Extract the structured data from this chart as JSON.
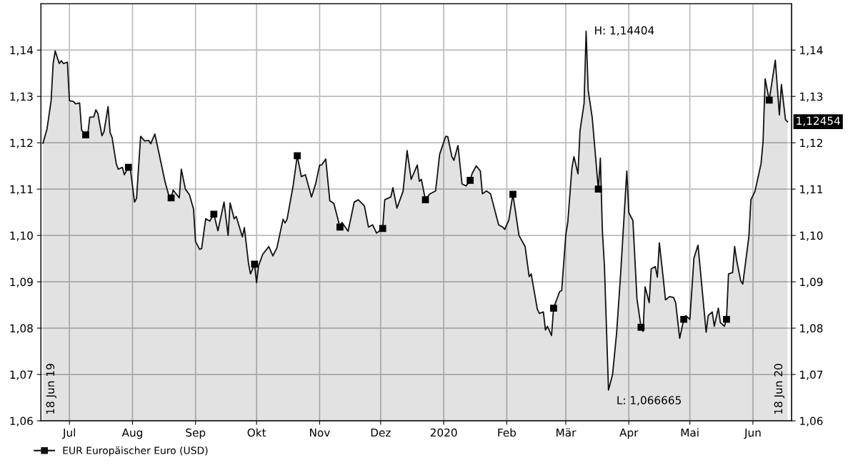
{
  "chart_data": {
    "type": "area",
    "x": [
      "2019-06-18",
      "2019-06-20",
      "2019-06-22",
      "2019-06-23",
      "2019-06-24",
      "2019-06-26",
      "2019-06-27",
      "2019-06-28",
      "2019-06-30",
      "2019-07-01",
      "2019-07-03",
      "2019-07-04",
      "2019-07-06",
      "2019-07-07",
      "2019-07-09",
      "2019-07-10",
      "2019-07-11",
      "2019-07-13",
      "2019-07-14",
      "2019-07-15",
      "2019-07-17",
      "2019-07-18",
      "2019-07-20",
      "2019-07-21",
      "2019-07-22",
      "2019-07-24",
      "2019-07-25",
      "2019-07-27",
      "2019-07-28",
      "2019-07-30",
      "2019-07-31",
      "2019-08-02",
      "2019-08-03",
      "2019-08-05",
      "2019-08-07",
      "2019-08-09",
      "2019-08-10",
      "2019-08-12",
      "2019-08-14",
      "2019-08-17",
      "2019-08-19",
      "2019-08-20",
      "2019-08-21",
      "2019-08-24",
      "2019-08-25",
      "2019-08-27",
      "2019-08-29",
      "2019-08-31",
      "2019-09-01",
      "2019-09-03",
      "2019-09-04",
      "2019-09-06",
      "2019-09-08",
      "2019-09-10",
      "2019-09-12",
      "2019-09-15",
      "2019-09-17",
      "2019-09-18",
      "2019-09-20",
      "2019-09-21",
      "2019-09-24",
      "2019-09-25",
      "2019-09-27",
      "2019-09-28",
      "2019-09-30",
      "2019-10-01",
      "2019-10-02",
      "2019-10-04",
      "2019-10-07",
      "2019-10-09",
      "2019-10-11",
      "2019-10-14",
      "2019-10-15",
      "2019-10-16",
      "2019-10-19",
      "2019-10-21",
      "2019-10-23",
      "2019-10-25",
      "2019-10-28",
      "2019-10-30",
      "2019-11-01",
      "2019-11-02",
      "2019-11-04",
      "2019-11-06",
      "2019-11-08",
      "2019-11-11",
      "2019-11-12",
      "2019-11-15",
      "2019-11-18",
      "2019-11-20",
      "2019-11-23",
      "2019-11-25",
      "2019-11-27",
      "2019-11-29",
      "2019-12-02",
      "2019-12-03",
      "2019-12-06",
      "2019-12-07",
      "2019-12-09",
      "2019-12-12",
      "2019-12-14",
      "2019-12-16",
      "2019-12-19",
      "2019-12-20",
      "2019-12-21",
      "2019-12-23",
      "2019-12-25",
      "2019-12-28",
      "2019-12-30",
      "2020-01-02",
      "2020-01-03",
      "2020-01-05",
      "2020-01-06",
      "2020-01-08",
      "2020-01-10",
      "2020-01-12",
      "2020-01-14",
      "2020-01-15",
      "2020-01-17",
      "2020-01-19",
      "2020-01-20",
      "2020-01-22",
      "2020-01-24",
      "2020-01-28",
      "2020-01-30",
      "2020-01-31",
      "2020-02-02",
      "2020-02-04",
      "2020-02-07",
      "2020-02-10",
      "2020-02-12",
      "2020-02-13",
      "2020-02-16",
      "2020-02-17",
      "2020-02-19",
      "2020-02-20",
      "2020-02-21",
      "2020-02-23",
      "2020-02-24",
      "2020-02-27",
      "2020-02-28",
      "2020-03-01",
      "2020-03-02",
      "2020-03-04",
      "2020-03-05",
      "2020-03-07",
      "2020-03-08",
      "2020-03-10",
      "2020-03-11",
      "2020-03-12",
      "2020-03-14",
      "2020-03-17",
      "2020-03-18",
      "2020-03-19",
      "2020-03-20",
      "2020-03-22",
      "2020-03-24",
      "2020-03-26",
      "2020-03-28",
      "2020-03-31",
      "2020-04-01",
      "2020-04-03",
      "2020-04-05",
      "2020-04-07",
      "2020-04-08",
      "2020-04-09",
      "2020-04-11",
      "2020-04-12",
      "2020-04-14",
      "2020-04-15",
      "2020-04-16",
      "2020-04-18",
      "2020-04-19",
      "2020-04-21",
      "2020-04-23",
      "2020-04-24",
      "2020-04-26",
      "2020-04-28",
      "2020-04-29",
      "2020-05-01",
      "2020-05-03",
      "2020-05-05",
      "2020-05-09",
      "2020-05-10",
      "2020-05-12",
      "2020-05-13",
      "2020-05-15",
      "2020-05-16",
      "2020-05-18",
      "2020-05-19",
      "2020-05-20",
      "2020-05-22",
      "2020-05-23",
      "2020-05-24",
      "2020-05-26",
      "2020-05-27",
      "2020-05-30",
      "2020-05-31",
      "2020-06-02",
      "2020-06-05",
      "2020-06-06",
      "2020-06-07",
      "2020-06-09",
      "2020-06-12",
      "2020-06-14",
      "2020-06-15",
      "2020-06-17",
      "2020-06-18"
    ],
    "series": [
      {
        "name": "EUR Europäischer Euro (USD)",
        "color": "#111111",
        "values": [
          1.1199,
          1.123,
          1.1291,
          1.1371,
          1.1398,
          1.1371,
          1.1377,
          1.1371,
          1.1374,
          1.1291,
          1.1289,
          1.1284,
          1.1286,
          1.1227,
          1.1217,
          1.1217,
          1.1255,
          1.1256,
          1.1271,
          1.1263,
          1.1215,
          1.1224,
          1.1278,
          1.1222,
          1.1211,
          1.1155,
          1.1143,
          1.1147,
          1.1131,
          1.1147,
          1.1142,
          1.1072,
          1.108,
          1.1214,
          1.1204,
          1.1205,
          1.1198,
          1.1219,
          1.1178,
          1.1116,
          1.1084,
          1.1081,
          1.1098,
          1.1081,
          1.1143,
          1.11,
          1.1088,
          1.1057,
          1.0987,
          1.097,
          1.0972,
          1.1036,
          1.1031,
          1.1046,
          1.101,
          1.1072,
          1.1,
          1.107,
          1.1036,
          1.1041,
          1.0997,
          1.1017,
          1.0941,
          1.0917,
          1.0938,
          1.0898,
          1.0935,
          1.0959,
          1.0976,
          1.0956,
          1.0973,
          1.1035,
          1.1027,
          1.1035,
          1.1108,
          1.1172,
          1.1127,
          1.1131,
          1.1083,
          1.1111,
          1.1152,
          1.1152,
          1.1165,
          1.1075,
          1.1069,
          1.1018,
          1.1028,
          1.1009,
          1.1072,
          1.1077,
          1.1064,
          1.1018,
          1.1023,
          1.1005,
          1.1015,
          1.1077,
          1.1083,
          1.1103,
          1.1059,
          1.1095,
          1.1183,
          1.1121,
          1.1152,
          1.1117,
          1.1121,
          1.1077,
          1.1089,
          1.1096,
          1.1175,
          1.1214,
          1.1213,
          1.117,
          1.1162,
          1.1194,
          1.1111,
          1.1107,
          1.1119,
          1.1134,
          1.115,
          1.1139,
          1.109,
          1.1096,
          1.109,
          1.1023,
          1.1018,
          1.1013,
          1.1033,
          1.1089,
          1.1,
          1.0976,
          1.0911,
          1.0917,
          1.0841,
          1.0832,
          1.0835,
          1.0796,
          1.0804,
          1.0784,
          1.0843,
          1.0879,
          1.0881,
          1.1001,
          1.1029,
          1.1145,
          1.117,
          1.1133,
          1.1226,
          1.1285,
          1.14404,
          1.1314,
          1.1254,
          1.11,
          1.1167,
          1.1009,
          1.0934,
          1.066665,
          1.07,
          1.079,
          1.0919,
          1.1139,
          1.1049,
          1.1032,
          1.0863,
          1.0802,
          1.0793,
          1.0889,
          1.0855,
          1.0928,
          1.0933,
          1.091,
          1.0984,
          1.0904,
          1.0861,
          1.0868,
          1.0866,
          1.0855,
          1.0778,
          1.0819,
          1.0827,
          1.0819,
          1.0951,
          1.0979,
          1.0791,
          1.0827,
          1.0835,
          1.0804,
          1.0843,
          1.0812,
          1.0804,
          1.0819,
          1.0917,
          1.092,
          1.0976,
          1.0946,
          1.0902,
          1.0895,
          1.0997,
          1.1077,
          1.1095,
          1.1155,
          1.1204,
          1.1338,
          1.1292,
          1.1378,
          1.126,
          1.1326,
          1.125,
          1.12454
        ]
      },
      {
        "type": "scatter",
        "marker": "square",
        "color": "#000000",
        "x": [
          "2019-07-09",
          "2019-07-30",
          "2019-08-20",
          "2019-09-10",
          "2019-09-30",
          "2019-10-21",
          "2019-11-11",
          "2019-12-02",
          "2019-12-23",
          "2020-01-14",
          "2020-02-04",
          "2020-02-24",
          "2020-03-17",
          "2020-04-07",
          "2020-04-28",
          "2020-05-19",
          "2020-06-09"
        ],
        "values": [
          1.1217,
          1.1147,
          1.1081,
          1.1046,
          1.0938,
          1.1172,
          1.1018,
          1.1015,
          1.1077,
          1.1119,
          1.1089,
          1.0843,
          1.11,
          1.0802,
          1.0819,
          1.0819,
          1.1292
        ]
      }
    ],
    "xlim": [
      "2019-06-17",
      "2020-06-20"
    ],
    "xticks": [
      {
        "value": "2019-07-01",
        "label": "Jul"
      },
      {
        "value": "2019-08-01",
        "label": "Aug"
      },
      {
        "value": "2019-09-01",
        "label": "Sep"
      },
      {
        "value": "2019-10-01",
        "label": "Okt"
      },
      {
        "value": "2019-11-01",
        "label": "Nov"
      },
      {
        "value": "2019-12-01",
        "label": "Dez"
      },
      {
        "value": "2020-01-01",
        "label": "2020"
      },
      {
        "value": "2020-02-01",
        "label": "Feb"
      },
      {
        "value": "2020-03-01",
        "label": "Mär"
      },
      {
        "value": "2020-04-01",
        "label": "Apr"
      },
      {
        "value": "2020-05-01",
        "label": "Mai"
      },
      {
        "value": "2020-06-01",
        "label": "Jun"
      }
    ],
    "ylim": [
      1.06,
      1.15
    ],
    "yticks": [
      {
        "value": 1.06,
        "label": "1,06"
      },
      {
        "value": 1.07,
        "label": "1,07"
      },
      {
        "value": 1.08,
        "label": "1,08"
      },
      {
        "value": 1.09,
        "label": "1,09"
      },
      {
        "value": 1.1,
        "label": "1,10"
      },
      {
        "value": 1.11,
        "label": "1,11"
      },
      {
        "value": 1.12,
        "label": "1,12"
      },
      {
        "value": 1.13,
        "label": "1,13"
      },
      {
        "value": 1.14,
        "label": "1,14"
      }
    ],
    "y2lim": [
      1.06,
      1.15
    ],
    "y2ticks": [
      {
        "value": 1.06,
        "label": "1,06"
      },
      {
        "value": 1.07,
        "label": "1,07"
      },
      {
        "value": 1.08,
        "label": "1,08"
      },
      {
        "value": 1.09,
        "label": "1,09"
      },
      {
        "value": 1.1,
        "label": "1,10"
      },
      {
        "value": 1.11,
        "label": "1,11"
      },
      {
        "value": 1.12,
        "label": "1,12"
      },
      {
        "value": 1.13,
        "label": "1,13"
      },
      {
        "value": 1.14,
        "label": "1,14"
      }
    ],
    "annotations": [
      {
        "text": "18 Jun 19",
        "x": "2019-06-18",
        "y": 1.06
      },
      {
        "text": "18 Jun 20",
        "x": "2020-06-18",
        "y": 1.06
      },
      {
        "text": "H: 1,14404",
        "x": "2020-03-11",
        "y": 1.14404
      },
      {
        "text": "L: 1,066665",
        "x": "2020-03-22",
        "y": 1.066665
      },
      {
        "text": "1,12454",
        "x": "2020-06-18",
        "y": 1.12454
      }
    ],
    "grid": true,
    "legend": "bottom left"
  }
}
